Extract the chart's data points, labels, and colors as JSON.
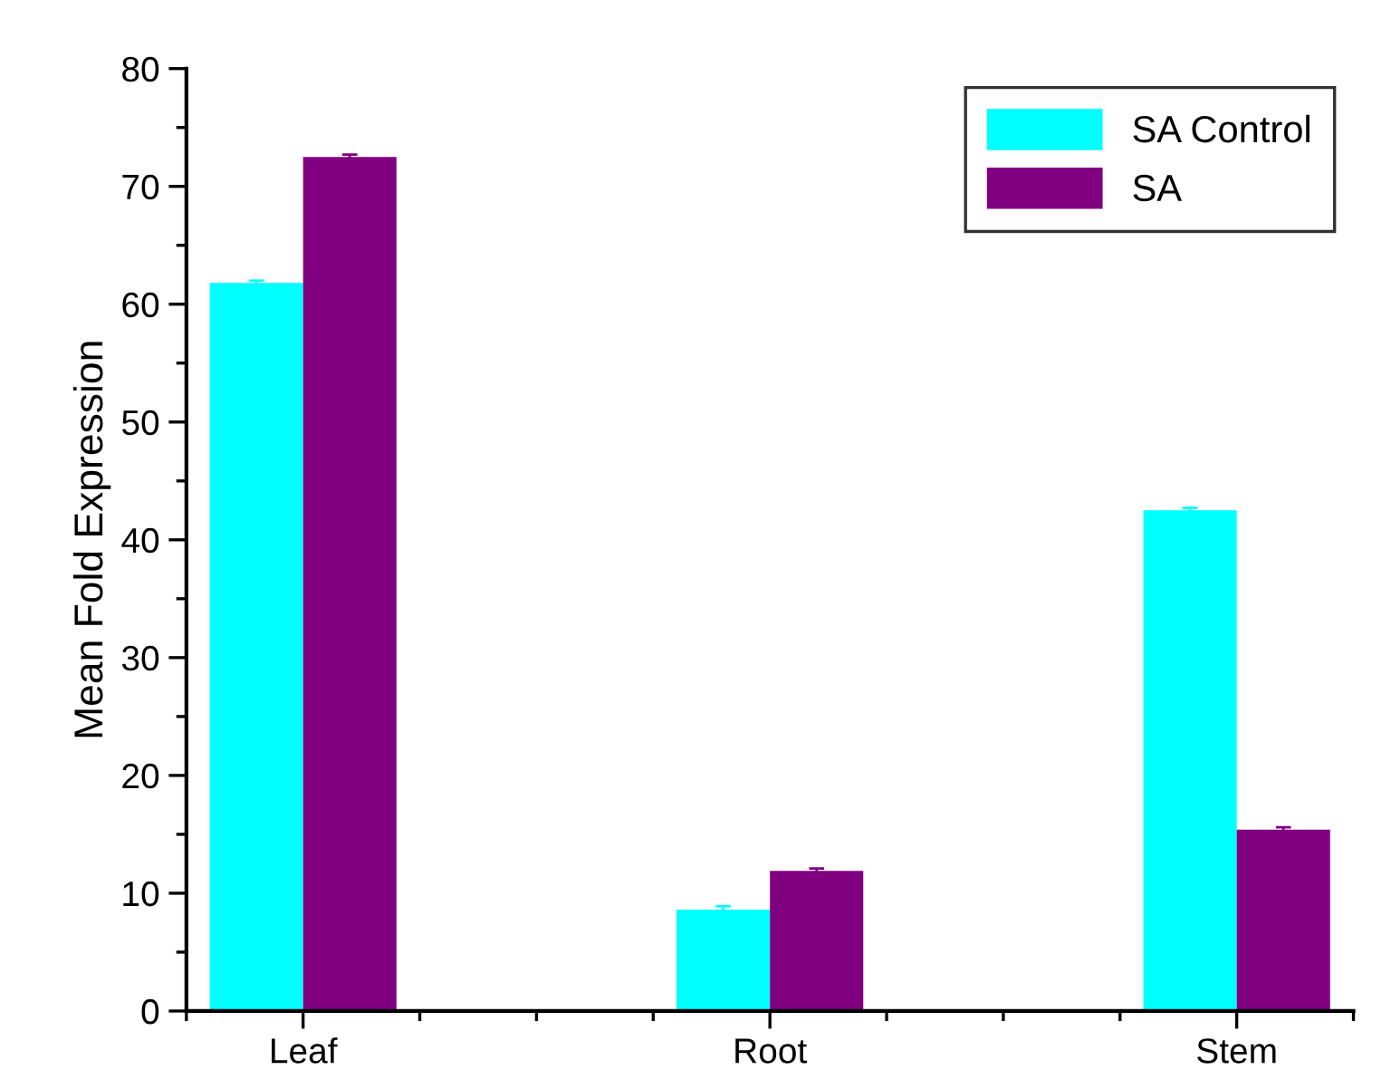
{
  "chart_data": {
    "type": "bar",
    "ylabel": "Mean Fold Expression",
    "categories": [
      "Leaf",
      "Root",
      "Stem"
    ],
    "series": [
      {
        "name": "SA Control",
        "color": "#00ffff",
        "values": [
          61.8,
          8.6,
          42.5
        ],
        "errors": [
          0.2,
          0.3,
          0.2
        ]
      },
      {
        "name": "SA",
        "color": "#800080",
        "values": [
          72.5,
          11.9,
          15.4
        ],
        "errors": [
          0.2,
          0.2,
          0.2
        ]
      }
    ],
    "ylim": [
      0,
      80
    ],
    "yticks": [
      0,
      10,
      20,
      30,
      40,
      50,
      60,
      70,
      80
    ],
    "grid": false,
    "legend": "top right"
  }
}
